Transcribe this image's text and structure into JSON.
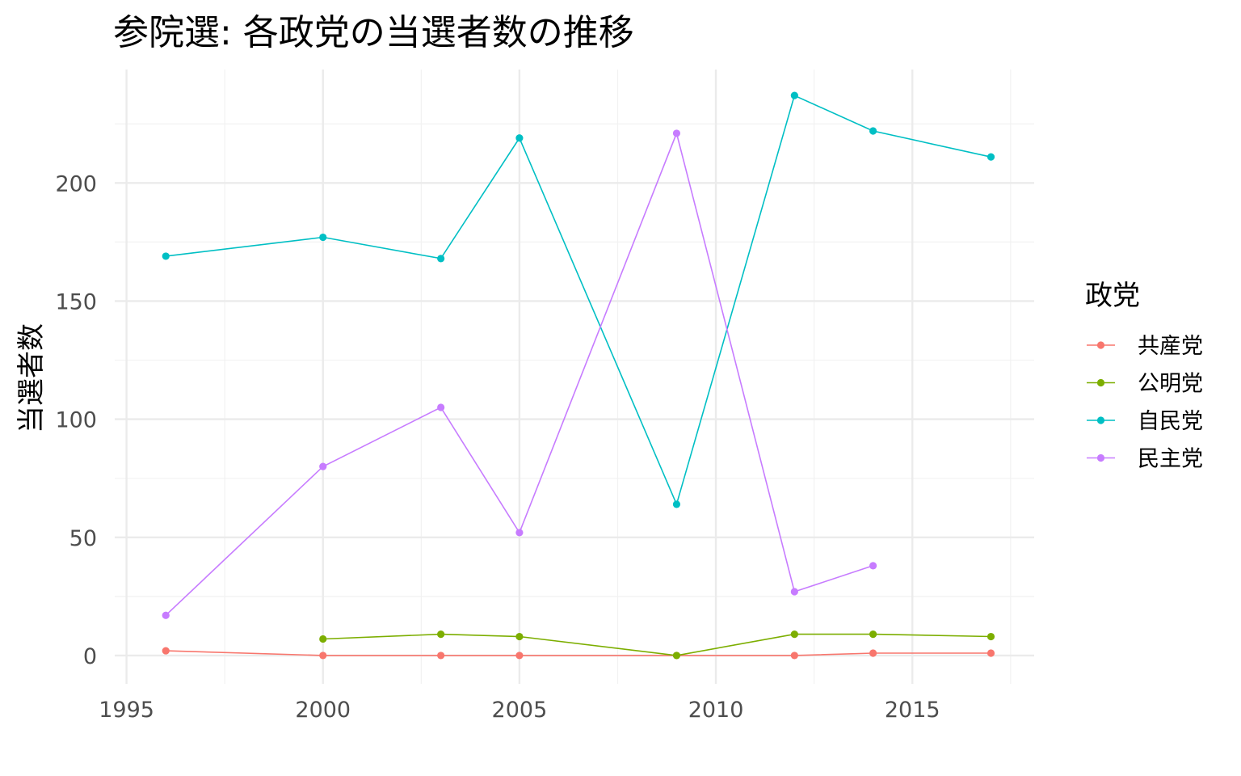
{
  "chart_data": {
    "type": "line",
    "title": "参院選: 各政党の当選者数の推移",
    "xlabel": "",
    "ylabel": "当選者数",
    "xlim": [
      1994.7,
      2018.1
    ],
    "ylim": [
      -12,
      248
    ],
    "x_ticks": [
      1995,
      2000,
      2005,
      2010,
      2015
    ],
    "y_ticks": [
      0,
      50,
      100,
      150,
      200
    ],
    "grid": true,
    "legend": {
      "title": "政党",
      "position": "right"
    },
    "series": [
      {
        "name": "共産党",
        "color": "#F8766D",
        "points": [
          [
            1996,
            2
          ],
          [
            2000,
            0
          ],
          [
            2003,
            0
          ],
          [
            2005,
            0
          ],
          [
            2009,
            0
          ],
          [
            2012,
            0
          ],
          [
            2014,
            1
          ],
          [
            2017,
            1
          ]
        ]
      },
      {
        "name": "公明党",
        "color": "#7CAE00",
        "points": [
          [
            2000,
            7
          ],
          [
            2003,
            9
          ],
          [
            2005,
            8
          ],
          [
            2009,
            0
          ],
          [
            2012,
            9
          ],
          [
            2014,
            9
          ],
          [
            2017,
            8
          ]
        ]
      },
      {
        "name": "自民党",
        "color": "#00BFC4",
        "points": [
          [
            1996,
            169
          ],
          [
            2000,
            177
          ],
          [
            2003,
            168
          ],
          [
            2005,
            219
          ],
          [
            2009,
            64
          ],
          [
            2012,
            237
          ],
          [
            2014,
            222
          ],
          [
            2017,
            211
          ]
        ]
      },
      {
        "name": "民主党",
        "color": "#C77CFF",
        "points": [
          [
            1996,
            17
          ],
          [
            2000,
            80
          ],
          [
            2003,
            105
          ],
          [
            2005,
            52
          ],
          [
            2009,
            221
          ],
          [
            2012,
            27
          ],
          [
            2014,
            38
          ]
        ]
      }
    ]
  }
}
